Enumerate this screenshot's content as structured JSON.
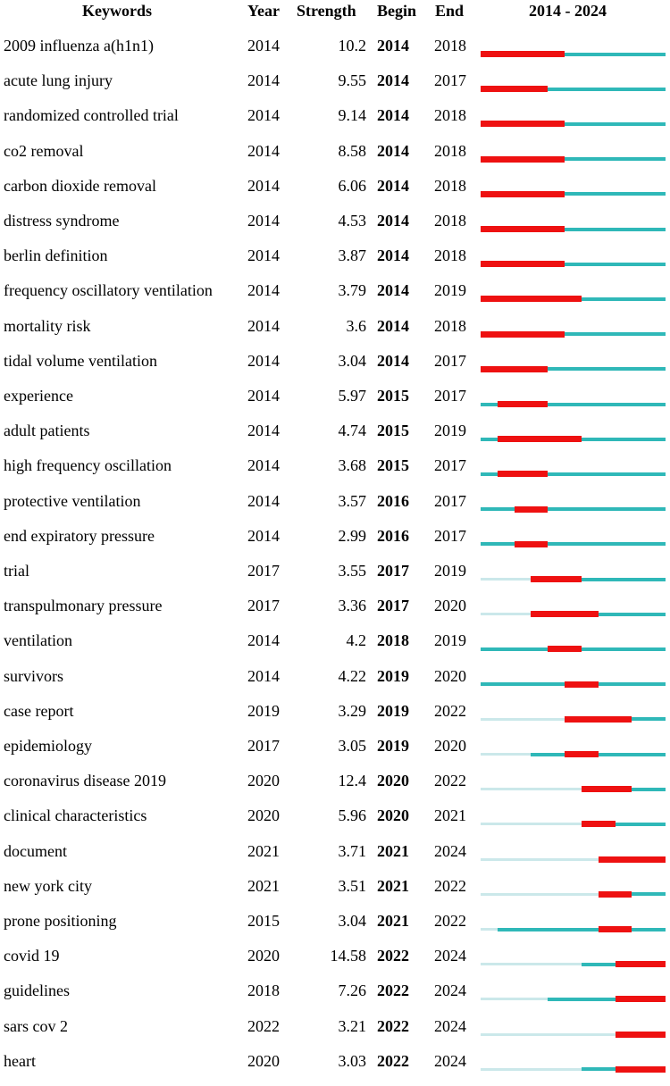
{
  "chart_data": {
    "type": "table",
    "columns": [
      "Keywords",
      "Year",
      "Strength",
      "Begin",
      "End",
      "2014 - 2024"
    ],
    "range": [
      2014,
      2024
    ],
    "colors": {
      "burst": "#ee1111",
      "active": "#2fb8b8",
      "pre": "#cbe8ea"
    },
    "rows": [
      {
        "keyword": "2009 influenza a(h1n1)",
        "year": "2014",
        "strength": "10.2",
        "begin": "2014",
        "end": "2018"
      },
      {
        "keyword": "acute lung injury",
        "year": "2014",
        "strength": "9.55",
        "begin": "2014",
        "end": "2017"
      },
      {
        "keyword": "randomized controlled trial",
        "year": "2014",
        "strength": "9.14",
        "begin": "2014",
        "end": "2018"
      },
      {
        "keyword": "co2 removal",
        "year": "2014",
        "strength": "8.58",
        "begin": "2014",
        "end": "2018"
      },
      {
        "keyword": "carbon dioxide removal",
        "year": "2014",
        "strength": "6.06",
        "begin": "2014",
        "end": "2018"
      },
      {
        "keyword": "distress syndrome",
        "year": "2014",
        "strength": "4.53",
        "begin": "2014",
        "end": "2018"
      },
      {
        "keyword": "berlin definition",
        "year": "2014",
        "strength": "3.87",
        "begin": "2014",
        "end": "2018"
      },
      {
        "keyword": "frequency oscillatory ventilation",
        "year": "2014",
        "strength": "3.79",
        "begin": "2014",
        "end": "2019"
      },
      {
        "keyword": "mortality risk",
        "year": "2014",
        "strength": "3.6",
        "begin": "2014",
        "end": "2018"
      },
      {
        "keyword": "tidal volume ventilation",
        "year": "2014",
        "strength": "3.04",
        "begin": "2014",
        "end": "2017"
      },
      {
        "keyword": "experience",
        "year": "2014",
        "strength": "5.97",
        "begin": "2015",
        "end": "2017"
      },
      {
        "keyword": "adult patients",
        "year": "2014",
        "strength": "4.74",
        "begin": "2015",
        "end": "2019"
      },
      {
        "keyword": "high frequency oscillation",
        "year": "2014",
        "strength": "3.68",
        "begin": "2015",
        "end": "2017"
      },
      {
        "keyword": "protective ventilation",
        "year": "2014",
        "strength": "3.57",
        "begin": "2016",
        "end": "2017"
      },
      {
        "keyword": "end expiratory pressure",
        "year": "2014",
        "strength": "2.99",
        "begin": "2016",
        "end": "2017"
      },
      {
        "keyword": "trial",
        "year": "2017",
        "strength": "3.55",
        "begin": "2017",
        "end": "2019"
      },
      {
        "keyword": "transpulmonary pressure",
        "year": "2017",
        "strength": "3.36",
        "begin": "2017",
        "end": "2020"
      },
      {
        "keyword": "ventilation",
        "year": "2014",
        "strength": "4.2",
        "begin": "2018",
        "end": "2019"
      },
      {
        "keyword": "survivors",
        "year": "2014",
        "strength": "4.22",
        "begin": "2019",
        "end": "2020"
      },
      {
        "keyword": "case report",
        "year": "2019",
        "strength": "3.29",
        "begin": "2019",
        "end": "2022"
      },
      {
        "keyword": "epidemiology",
        "year": "2017",
        "strength": "3.05",
        "begin": "2019",
        "end": "2020"
      },
      {
        "keyword": "coronavirus disease 2019",
        "year": "2020",
        "strength": "12.4",
        "begin": "2020",
        "end": "2022"
      },
      {
        "keyword": "clinical characteristics",
        "year": "2020",
        "strength": "5.96",
        "begin": "2020",
        "end": "2021"
      },
      {
        "keyword": "document",
        "year": "2021",
        "strength": "3.71",
        "begin": "2021",
        "end": "2024"
      },
      {
        "keyword": "new york city",
        "year": "2021",
        "strength": "3.51",
        "begin": "2021",
        "end": "2022"
      },
      {
        "keyword": "prone positioning",
        "year": "2015",
        "strength": "3.04",
        "begin": "2021",
        "end": "2022"
      },
      {
        "keyword": "covid 19",
        "year": "2020",
        "strength": "14.58",
        "begin": "2022",
        "end": "2024"
      },
      {
        "keyword": "guidelines",
        "year": "2018",
        "strength": "7.26",
        "begin": "2022",
        "end": "2024"
      },
      {
        "keyword": "sars cov 2",
        "year": "2022",
        "strength": "3.21",
        "begin": "2022",
        "end": "2024"
      },
      {
        "keyword": "heart",
        "year": "2020",
        "strength": "3.03",
        "begin": "2022",
        "end": "2024"
      }
    ]
  }
}
